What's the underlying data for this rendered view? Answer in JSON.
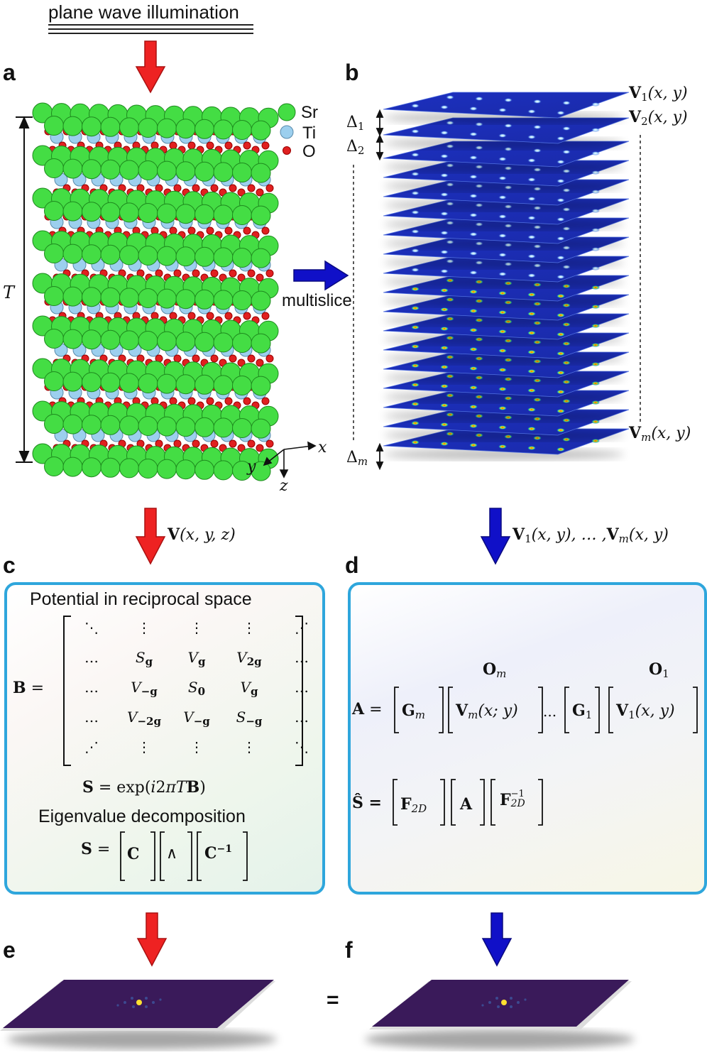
{
  "illumination": {
    "label": "plane wave illumination"
  },
  "panels": {
    "a": "a",
    "b": "b",
    "c": "c",
    "d": "d",
    "e": "e",
    "f": "f"
  },
  "legend": {
    "items": [
      {
        "label": "Sr",
        "color": "#44dd44"
      },
      {
        "label": "Ti",
        "color": "#9ccfee"
      },
      {
        "label": "O",
        "color": "#e02020"
      }
    ]
  },
  "panel_a": {
    "thickness_label": "T",
    "axes": {
      "x": "x",
      "y": "y",
      "z": "z"
    }
  },
  "panel_b": {
    "slice_labels": {
      "v1_main": "V",
      "v1_sub": "1",
      "v1_arg": "(x, y)",
      "v2_main": "V",
      "v2_sub": "2",
      "v2_arg": "(x, y)",
      "vm_main": "V",
      "vm_sub": "m",
      "vm_arg": "(x, y)"
    },
    "deltas": {
      "d1": "Δ",
      "d1_sub": "1",
      "d2": "Δ",
      "d2_sub": "2",
      "dm": "Δ",
      "dm_sub": "m"
    },
    "slice_count": 18
  },
  "multislice": {
    "label": "multislice"
  },
  "arrows": {
    "left_label_main": "V",
    "left_label_arg": "(x, y, z)",
    "right_label": {
      "p1": "V",
      "s1": "1",
      "a1": "(x, y), … ,",
      "p2": "V",
      "s2": "m",
      "a2": "(x, y)"
    }
  },
  "panel_c": {
    "title": "Potential in reciprocal space",
    "lhs": "B =",
    "matrix": [
      [
        "⋱",
        "⋮",
        "⋮",
        "⋮",
        "⋰"
      ],
      [
        "…",
        "S_g",
        "V_g",
        "V_2g",
        "…"
      ],
      [
        "…",
        "V_−g",
        "S_0",
        "V_g",
        "…"
      ],
      [
        "…",
        "V_−2g",
        "V_−g",
        "S_−g",
        "…"
      ],
      [
        "⋰",
        "⋮",
        "⋮",
        "⋮",
        "⋱"
      ]
    ],
    "s_eq": "S = exp(i2πTB)",
    "eig_title": "Eigenvalue decomposition",
    "eig_eq": {
      "lhs": "S =",
      "c": "C",
      "lambda": "∧",
      "cinv": "C",
      "cinv_sup": "−1"
    }
  },
  "panel_d": {
    "om": "O",
    "om_sub": "m",
    "o1": "O",
    "o1_sub": "1",
    "a_eq": {
      "lhs": "A =",
      "gm": "G",
      "gm_sub": "m",
      "vm": "V",
      "vm_sub": "m",
      "vm_arg": "(x;  y)",
      "dots": "...",
      "g1": "G",
      "g1_sub": "1",
      "v1": "V",
      "v1_sub": "1",
      "v1_arg": "(x, y)"
    },
    "s_eq": {
      "lhs": "Ŝ =",
      "f": "F",
      "f_sub": "2D",
      "a": "A",
      "finv": "F",
      "finv_sub": "2D",
      "finv_sup": "−1"
    }
  },
  "equals": "=",
  "colors": {
    "red_arrow": "#ee2222",
    "blue_arrow": "#1010c8",
    "box_border": "#2ea6dc",
    "slice_blue": "#1a36c8",
    "diffraction_plane": "#3a1a5a"
  }
}
